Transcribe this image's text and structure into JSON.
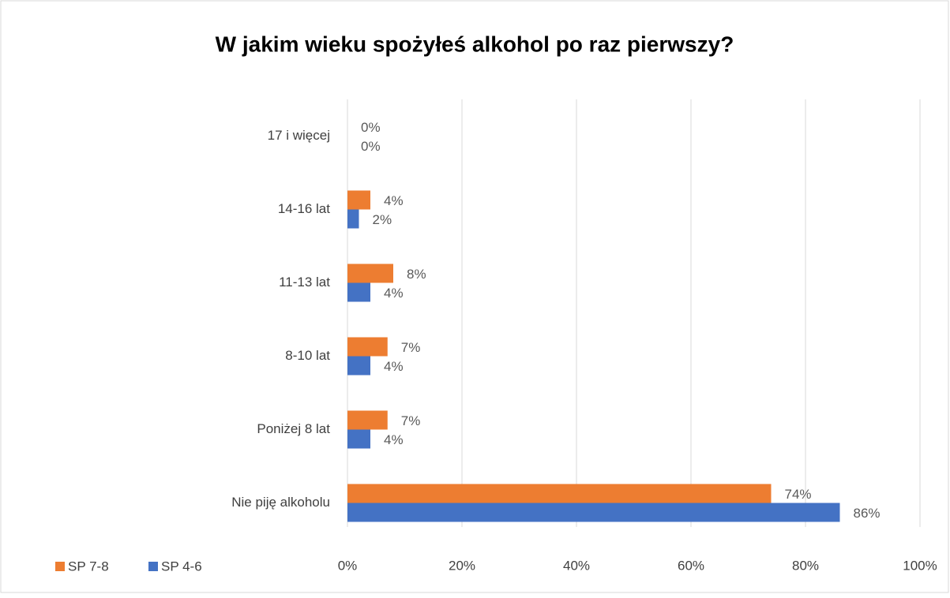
{
  "chart_data": {
    "type": "hbar",
    "title": "W jakim wieku spożyłeś alkohol po raz pierwszy?",
    "categories": [
      "17 i więcej",
      "14-16 lat",
      "11-13 lat",
      "8-10 lat",
      "Poniżej 8 lat",
      "Nie piję alkoholu"
    ],
    "series": [
      {
        "name": "SP 7-8",
        "color": "#ed7d31",
        "values": [
          0,
          4,
          8,
          7,
          7,
          74
        ],
        "value_labels": [
          "0%",
          "4%",
          "8%",
          "7%",
          "7%",
          "74%"
        ]
      },
      {
        "name": "SP 4-6",
        "color": "#4472c4",
        "values": [
          0,
          2,
          4,
          4,
          4,
          86
        ],
        "value_labels": [
          "0%",
          "2%",
          "4%",
          "4%",
          "4%",
          "86%"
        ]
      }
    ],
    "xlim": [
      0,
      100
    ],
    "xticks": [
      {
        "value": 0,
        "label": "0%"
      },
      {
        "value": 20,
        "label": "20%"
      },
      {
        "value": 40,
        "label": "40%"
      },
      {
        "value": 60,
        "label": "60%"
      },
      {
        "value": 80,
        "label": "80%"
      },
      {
        "value": 100,
        "label": "100%"
      }
    ],
    "grid": true,
    "legend": "bottom-left"
  }
}
